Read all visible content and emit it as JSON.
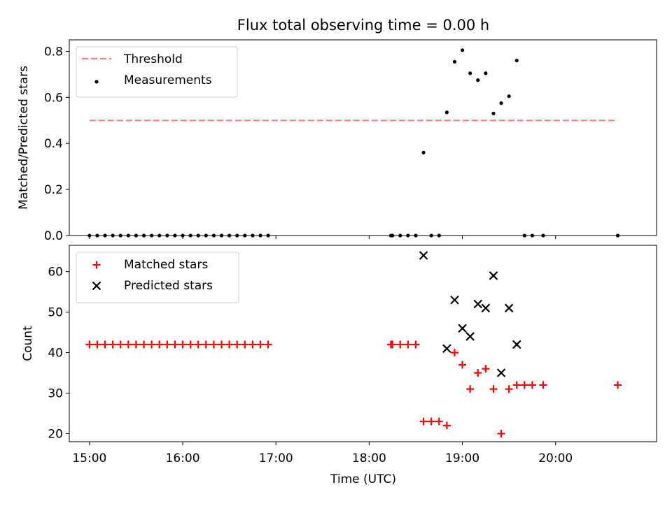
{
  "chart_data": {
    "title": "Flux total observing time = 0.00 h",
    "xlabel": "Time (UTC)",
    "x_axis_type": "time",
    "xlim": [
      "14:47",
      "21:05"
    ],
    "xticks": [
      "15:00",
      "16:00",
      "17:00",
      "18:00",
      "19:00",
      "20:00"
    ],
    "shared_x": true,
    "panels": [
      {
        "type": "scatter",
        "ylabel": "Matched/Predicted stars",
        "ylim": [
          0,
          0.85
        ],
        "yticks": [
          "0.0",
          "0.2",
          "0.4",
          "0.6",
          "0.8"
        ],
        "legend_position": "upper-left",
        "threshold": {
          "name": "Threshold",
          "value": 0.5,
          "x_range": [
            "15:00",
            "20:40"
          ],
          "color": "#ff7f7f",
          "style": "dashed"
        },
        "series": [
          {
            "name": "Measurements",
            "color": "#000000",
            "marker": "dot",
            "points": [
              [
                "15:00",
                0
              ],
              [
                "15:05",
                0
              ],
              [
                "15:10",
                0
              ],
              [
                "15:15",
                0
              ],
              [
                "15:20",
                0
              ],
              [
                "15:25",
                0
              ],
              [
                "15:30",
                0
              ],
              [
                "15:35",
                0
              ],
              [
                "15:40",
                0
              ],
              [
                "15:45",
                0
              ],
              [
                "15:50",
                0
              ],
              [
                "15:55",
                0
              ],
              [
                "16:00",
                0
              ],
              [
                "16:05",
                0
              ],
              [
                "16:10",
                0
              ],
              [
                "16:15",
                0
              ],
              [
                "16:20",
                0
              ],
              [
                "16:25",
                0
              ],
              [
                "16:30",
                0
              ],
              [
                "16:35",
                0
              ],
              [
                "16:40",
                0
              ],
              [
                "16:45",
                0
              ],
              [
                "16:50",
                0
              ],
              [
                "16:55",
                0
              ],
              [
                "18:14",
                0
              ],
              [
                "18:15",
                0
              ],
              [
                "18:20",
                0
              ],
              [
                "18:25",
                0
              ],
              [
                "18:30",
                0
              ],
              [
                "18:35",
                0.36
              ],
              [
                "18:40",
                0
              ],
              [
                "18:45",
                0
              ],
              [
                "18:50",
                0.535
              ],
              [
                "18:55",
                0.755
              ],
              [
                "19:00",
                0.805
              ],
              [
                "19:05",
                0.705
              ],
              [
                "19:10",
                0.675
              ],
              [
                "19:15",
                0.705
              ],
              [
                "19:20",
                0.53
              ],
              [
                "19:25",
                0.575
              ],
              [
                "19:30",
                0.605
              ],
              [
                "19:35",
                0.76
              ],
              [
                "19:40",
                0
              ],
              [
                "19:45",
                0
              ],
              [
                "19:52",
                0
              ],
              [
                "20:40",
                0
              ]
            ]
          }
        ]
      },
      {
        "type": "scatter",
        "ylabel": "Count",
        "ylim": [
          18,
          66.5
        ],
        "yticks": [
          "20",
          "30",
          "40",
          "50",
          "60"
        ],
        "legend_position": "upper-left",
        "series": [
          {
            "name": "Matched stars",
            "color": "#ff0000",
            "marker": "plus",
            "points": [
              [
                "15:00",
                42
              ],
              [
                "15:05",
                42
              ],
              [
                "15:10",
                42
              ],
              [
                "15:15",
                42
              ],
              [
                "15:20",
                42
              ],
              [
                "15:25",
                42
              ],
              [
                "15:30",
                42
              ],
              [
                "15:35",
                42
              ],
              [
                "15:40",
                42
              ],
              [
                "15:45",
                42
              ],
              [
                "15:50",
                42
              ],
              [
                "15:55",
                42
              ],
              [
                "16:00",
                42
              ],
              [
                "16:05",
                42
              ],
              [
                "16:10",
                42
              ],
              [
                "16:15",
                42
              ],
              [
                "16:20",
                42
              ],
              [
                "16:25",
                42
              ],
              [
                "16:30",
                42
              ],
              [
                "16:35",
                42
              ],
              [
                "16:40",
                42
              ],
              [
                "16:45",
                42
              ],
              [
                "16:50",
                42
              ],
              [
                "16:55",
                42
              ],
              [
                "18:14",
                42
              ],
              [
                "18:15",
                42
              ],
              [
                "18:20",
                42
              ],
              [
                "18:25",
                42
              ],
              [
                "18:30",
                42
              ],
              [
                "18:35",
                23
              ],
              [
                "18:40",
                23
              ],
              [
                "18:45",
                23
              ],
              [
                "18:50",
                22
              ],
              [
                "18:55",
                40
              ],
              [
                "19:00",
                37
              ],
              [
                "19:05",
                31
              ],
              [
                "19:10",
                35
              ],
              [
                "19:15",
                36
              ],
              [
                "19:20",
                31
              ],
              [
                "19:25",
                20
              ],
              [
                "19:30",
                31
              ],
              [
                "19:35",
                32
              ],
              [
                "19:40",
                32
              ],
              [
                "19:45",
                32
              ],
              [
                "19:52",
                32
              ],
              [
                "20:40",
                32
              ]
            ]
          },
          {
            "name": "Predicted stars",
            "color": "#000000",
            "marker": "x",
            "points": [
              [
                "18:35",
                64
              ],
              [
                "18:50",
                41
              ],
              [
                "18:55",
                53
              ],
              [
                "19:00",
                46
              ],
              [
                "19:05",
                44
              ],
              [
                "19:10",
                52
              ],
              [
                "19:15",
                51
              ],
              [
                "19:20",
                59
              ],
              [
                "19:25",
                35
              ],
              [
                "19:30",
                51
              ],
              [
                "19:35",
                42
              ]
            ]
          }
        ]
      }
    ]
  }
}
